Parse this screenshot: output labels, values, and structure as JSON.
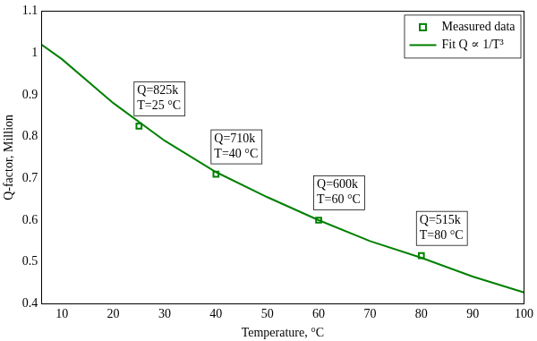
{
  "chart_data": {
    "type": "line",
    "x_label": "Temperature, °C",
    "y_label": "Q-factor, Million",
    "xlim": [
      6,
      100
    ],
    "xticks": [
      10,
      20,
      30,
      40,
      50,
      60,
      70,
      80,
      90,
      100
    ],
    "ylim": [
      0.4,
      1.1
    ],
    "yticks": [
      0.4,
      0.5,
      0.6,
      0.7,
      0.8,
      0.9,
      1,
      1.1
    ],
    "grid": false,
    "legend": "upper right",
    "series": [
      {
        "name": "Measured data",
        "type": "scatter",
        "marker": "square",
        "line_style": "none",
        "color": "#008000",
        "x": [
          25,
          40,
          60,
          80
        ],
        "values": [
          0.825,
          0.71,
          0.6,
          0.515
        ],
        "labels": [
          [
            "Q=825k",
            "T=25 °C"
          ],
          [
            "Q=710k",
            "T=40 °C"
          ],
          [
            "Q=600k",
            "T=60 °C"
          ],
          [
            "Q=515k",
            "T=80 °C"
          ]
        ]
      },
      {
        "name": "Fit Q ∝ 1/T³",
        "type": "line",
        "marker": "none",
        "line_style": "solid",
        "color": "#008000",
        "x": [
          6,
          10,
          20,
          30,
          40,
          50,
          60,
          70,
          80,
          90,
          100
        ],
        "values": [
          1.02,
          0.985,
          0.88,
          0.79,
          0.715,
          0.655,
          0.6,
          0.55,
          0.51,
          0.465,
          0.427
        ]
      }
    ]
  }
}
